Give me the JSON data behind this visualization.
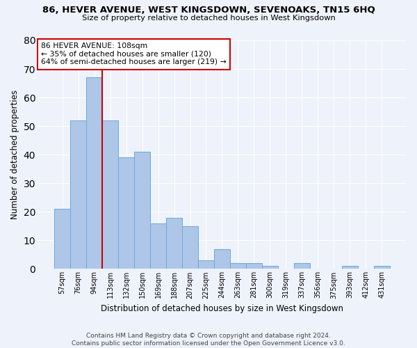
{
  "title": "86, HEVER AVENUE, WEST KINGSDOWN, SEVENOAKS, TN15 6HQ",
  "subtitle": "Size of property relative to detached houses in West Kingsdown",
  "xlabel": "Distribution of detached houses by size in West Kingsdown",
  "ylabel": "Number of detached properties",
  "footer_line1": "Contains HM Land Registry data © Crown copyright and database right 2024.",
  "footer_line2": "Contains public sector information licensed under the Open Government Licence v3.0.",
  "categories": [
    "57sqm",
    "76sqm",
    "94sqm",
    "113sqm",
    "132sqm",
    "150sqm",
    "169sqm",
    "188sqm",
    "207sqm",
    "225sqm",
    "244sqm",
    "263sqm",
    "281sqm",
    "300sqm",
    "319sqm",
    "337sqm",
    "356sqm",
    "375sqm",
    "393sqm",
    "412sqm",
    "431sqm"
  ],
  "values": [
    21,
    52,
    67,
    52,
    39,
    41,
    16,
    18,
    15,
    3,
    7,
    2,
    2,
    1,
    0,
    2,
    0,
    0,
    1,
    0,
    1
  ],
  "bar_color": "#aec6e8",
  "bar_edge_color": "#6aaad4",
  "background_color": "#eef2fb",
  "grid_color": "#ffffff",
  "vline_color": "#cc0000",
  "annotation_text": "86 HEVER AVENUE: 108sqm\n← 35% of detached houses are smaller (120)\n64% of semi-detached houses are larger (219) →",
  "annotation_box_color": "#ffffff",
  "annotation_box_edge": "#cc0000",
  "ylim": [
    0,
    80
  ],
  "yticks": [
    0,
    10,
    20,
    30,
    40,
    50,
    60,
    70,
    80
  ],
  "vline_index": 2.5
}
